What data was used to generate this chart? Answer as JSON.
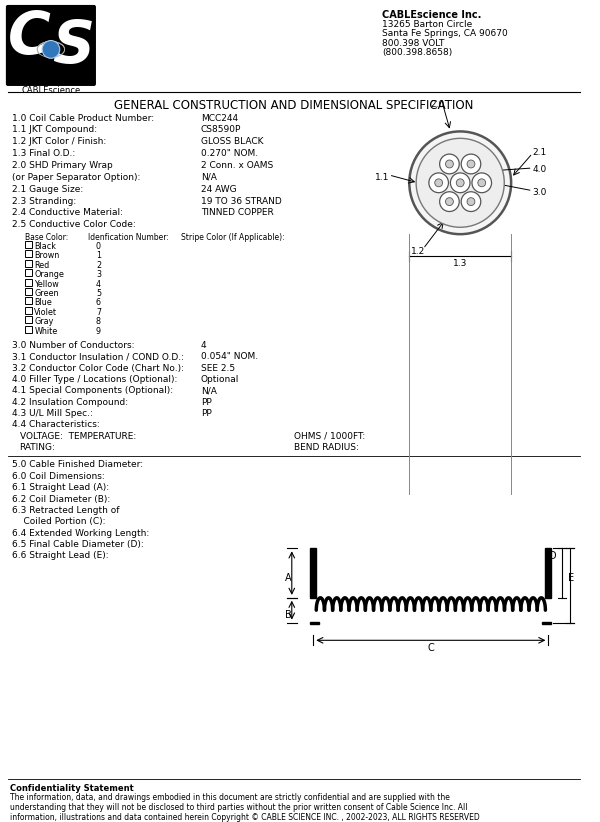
{
  "title": "GENERAL CONSTRUCTION AND DIMENSIONAL SPECIFICATION",
  "company_name": "CABLEscience Inc.",
  "company_address": "13265 Barton Circle\nSanta Fe Springs, CA 90670\n800.398 VOLT\n(800.398.8658)",
  "bg_color": "#ffffff",
  "specs_left": [
    [
      "1.0 Coil Cable Product Number:",
      "MCC244"
    ],
    [
      "1.1 JKT Compound:",
      "CS8590P"
    ],
    [
      "1.2 JKT Color / Finish:",
      "GLOSS BLACK"
    ],
    [
      "1.3 Final O.D.:",
      "0.270\" NOM."
    ],
    [
      "2.0 SHD Primary Wrap",
      "2 Conn. x OAMS"
    ],
    [
      "(or Paper Separator Option):",
      "N/A"
    ],
    [
      "2.1 Gauge Size:",
      "24 AWG"
    ],
    [
      "2.3 Stranding:",
      "19 TO 36 STRAND"
    ],
    [
      "2.4 Conductive Material:",
      "TINNED COPPER"
    ],
    [
      "2.5 Conductive Color Code:",
      ""
    ]
  ],
  "color_code_headers": [
    "Base Color:",
    "Idenfication Number:",
    "Stripe Color (If Applicable):"
  ],
  "color_codes": [
    [
      "Black",
      "0"
    ],
    [
      "Brown",
      "1"
    ],
    [
      "Red",
      "2"
    ],
    [
      "Orange",
      "3"
    ],
    [
      "Yellow",
      "4"
    ],
    [
      "Green",
      "5"
    ],
    [
      "Blue",
      "6"
    ],
    [
      "Violet",
      "7"
    ],
    [
      "Gray",
      "8"
    ],
    [
      "White",
      "9"
    ]
  ],
  "specs_lower": [
    [
      "3.0 Number of Conductors:",
      "4"
    ],
    [
      "3.1 Conductor Insulation / COND O.D.:",
      "0.054\" NOM."
    ],
    [
      "3.2 Conductor Color Code (Chart No.):",
      "SEE 2.5"
    ],
    [
      "4.0 Filler Type / Locations (Optional):",
      "Optional"
    ],
    [
      "4.1 Special Components (Optional):",
      "N/A"
    ],
    [
      "4.2 Insulation Compound:",
      "PP"
    ],
    [
      "4.3 U/L Mill Spec.:",
      "PP"
    ]
  ],
  "specs_bottom_left": [
    "5.0 Cable Finished Diameter:",
    "6.0 Coil Dimensions:",
    "6.1 Straight Lead (A):",
    "6.2 Coil Diameter (B):",
    "6.3 Retracted Length of",
    "    Coiled Portion (C):",
    "6.4 Extended Working Length:",
    "6.5 Final Cable Diameter (D):",
    "6.6 Straight Lead (E):"
  ],
  "confidentiality": "Confidentiality Statement\nThe information, data, and drawings embodied in this document are strictly confidential and are supplied with the\nunderstanding that they will not be disclosed to third parties without the prior written consent of Cable Science Inc. All\ninformation, illustrations and data contained herein Copyright © CABLE SCIENCE INC. , 2002-2023, ALL RIGHTS RESERVED"
}
